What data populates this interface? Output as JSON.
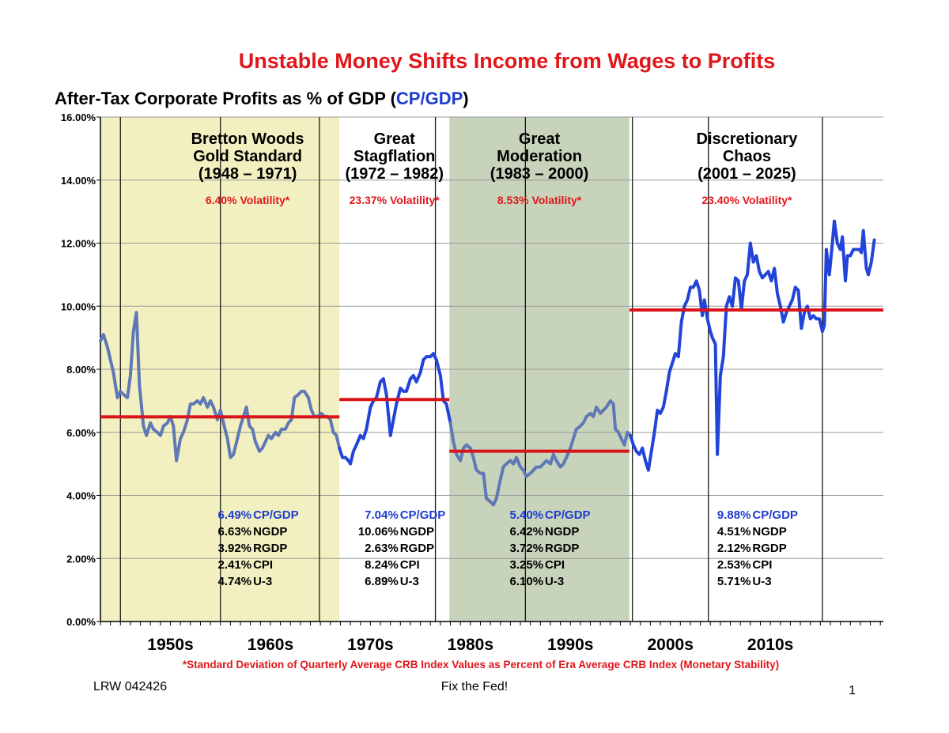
{
  "slide": {
    "title": "Unstable Money Shifts Income from Wages to Profits",
    "footnote": "*Standard Deviation of Quarterly Average CRB Index Values as Percent of Era Average CRB Index (Monetary Stability)",
    "footer_left": "LRW 042426",
    "footer_center": "Fix the Fed!",
    "footer_right": "1"
  },
  "chart_data": {
    "type": "line",
    "title": "After-Tax Corporate Profits as % of GDP (",
    "title_accent": "CP/GDP",
    "title_end": ")",
    "ylim": [
      0,
      16
    ],
    "xlim": [
      1948,
      2026.3
    ],
    "yticks": [
      "0.00%",
      "2.00%",
      "4.00%",
      "6.00%",
      "8.00%",
      "10.00%",
      "12.00%",
      "14.00%",
      "16.00%"
    ],
    "decade_labels": [
      "1950s",
      "1960s",
      "1970s",
      "1980s",
      "1990s",
      "2000s",
      "2010s"
    ],
    "decade_label_years": [
      1955,
      1965,
      1975,
      1985,
      1995,
      2005,
      2015
    ],
    "grid": true,
    "recession_lines": [
      1950,
      1960,
      1969.9,
      1981.5,
      1990.5,
      2001.2,
      2008.8,
      2020.2
    ],
    "colors": {
      "line_stable": "#5f78b6",
      "line_unstable": "#2244d8",
      "average_line": "#d9141b",
      "stat_cp": "#1e3cd0",
      "volatility": "#e0161b",
      "slide_title": "#e0161b"
    },
    "eras": [
      {
        "name_lines": [
          "Bretton Woods",
          "Gold Standard",
          "(1948 – 1971)"
        ],
        "volatility": "6.40% Volatility*",
        "start": 1948,
        "end": 1971.9,
        "shade": "#f2f0c0",
        "average": 6.49,
        "stats": [
          {
            "value": "6.49%",
            "label": "CP/GDP"
          },
          {
            "value": "6.63%",
            "label": "NGDP"
          },
          {
            "value": "3.92%",
            "label": "RGDP"
          },
          {
            "value": "2.41%",
            "label": "CPI"
          },
          {
            "value": "4.74%",
            "label": "U-3"
          }
        ]
      },
      {
        "name_lines": [
          "Great",
          "Stagflation",
          "(1972 – 1982)"
        ],
        "volatility": "23.37% Volatility*",
        "start": 1971.9,
        "end": 1982.9,
        "shade": "#ffffff",
        "average": 7.04,
        "stats": [
          {
            "value": "7.04%",
            "label": "CP/GDP"
          },
          {
            "value": "10.06%",
            "label": "NGDP"
          },
          {
            "value": "2.63%",
            "label": "RGDP"
          },
          {
            "value": "8.24%",
            "label": "CPI"
          },
          {
            "value": "6.89%",
            "label": "U-3"
          }
        ]
      },
      {
        "name_lines": [
          "Great",
          "Moderation",
          "(1983 – 2000)"
        ],
        "volatility": "8.53% Volatility*",
        "start": 1982.9,
        "end": 2000.9,
        "shade": "#c8d3bb",
        "average": 5.4,
        "stats": [
          {
            "value": "5.40%",
            "label": "CP/GDP"
          },
          {
            "value": "6.42%",
            "label": "NGDP"
          },
          {
            "value": "3.72%",
            "label": "RGDP"
          },
          {
            "value": "3.25%",
            "label": "CPI"
          },
          {
            "value": "6.10%",
            "label": "U-3"
          }
        ]
      },
      {
        "name_lines": [
          "Discretionary",
          "Chaos",
          "(2001 – 2025)"
        ],
        "volatility": "23.40% Volatility*",
        "start": 2000.9,
        "end": 2026.3,
        "shade": "#ffffff",
        "average": 9.88,
        "stats": [
          {
            "value": "9.88%",
            "label": "CP/GDP"
          },
          {
            "value": "4.51%",
            "label": "NGDP"
          },
          {
            "value": "2.12%",
            "label": "RGDP"
          },
          {
            "value": "2.53%",
            "label": "CPI"
          },
          {
            "value": "5.71%",
            "label": "U-3"
          }
        ]
      }
    ],
    "series": [
      {
        "name": "CP/GDP",
        "points": [
          [
            1948.0,
            8.9
          ],
          [
            1948.3,
            9.1
          ],
          [
            1948.7,
            8.7
          ],
          [
            1949.0,
            8.3
          ],
          [
            1949.3,
            7.9
          ],
          [
            1949.7,
            7.1
          ],
          [
            1950.0,
            7.3
          ],
          [
            1950.3,
            7.2
          ],
          [
            1950.7,
            7.1
          ],
          [
            1951.0,
            7.8
          ],
          [
            1951.3,
            9.2
          ],
          [
            1951.6,
            9.8
          ],
          [
            1951.9,
            7.5
          ],
          [
            1952.3,
            6.2
          ],
          [
            1952.6,
            5.9
          ],
          [
            1953.0,
            6.3
          ],
          [
            1953.3,
            6.1
          ],
          [
            1953.7,
            6.0
          ],
          [
            1954.0,
            5.9
          ],
          [
            1954.3,
            6.2
          ],
          [
            1954.7,
            6.3
          ],
          [
            1955.0,
            6.5
          ],
          [
            1955.3,
            6.2
          ],
          [
            1955.6,
            5.1
          ],
          [
            1956.0,
            5.8
          ],
          [
            1956.3,
            6.0
          ],
          [
            1956.7,
            6.4
          ],
          [
            1957.0,
            6.9
          ],
          [
            1957.3,
            6.9
          ],
          [
            1957.7,
            7.0
          ],
          [
            1958.0,
            6.9
          ],
          [
            1958.3,
            7.1
          ],
          [
            1958.7,
            6.8
          ],
          [
            1959.0,
            7.0
          ],
          [
            1959.3,
            6.8
          ],
          [
            1959.7,
            6.4
          ],
          [
            1960.0,
            6.7
          ],
          [
            1960.3,
            6.3
          ],
          [
            1960.7,
            5.8
          ],
          [
            1961.0,
            5.2
          ],
          [
            1961.3,
            5.3
          ],
          [
            1961.7,
            5.8
          ],
          [
            1962.0,
            6.2
          ],
          [
            1962.3,
            6.5
          ],
          [
            1962.6,
            6.8
          ],
          [
            1962.9,
            6.2
          ],
          [
            1963.2,
            6.1
          ],
          [
            1963.5,
            5.7
          ],
          [
            1963.9,
            5.4
          ],
          [
            1964.2,
            5.5
          ],
          [
            1964.5,
            5.7
          ],
          [
            1964.8,
            5.9
          ],
          [
            1965.1,
            5.8
          ],
          [
            1965.5,
            6.0
          ],
          [
            1965.8,
            5.9
          ],
          [
            1966.1,
            6.1
          ],
          [
            1966.5,
            6.1
          ],
          [
            1966.8,
            6.3
          ],
          [
            1967.1,
            6.4
          ],
          [
            1967.4,
            7.1
          ],
          [
            1967.8,
            7.2
          ],
          [
            1968.1,
            7.3
          ],
          [
            1968.4,
            7.3
          ],
          [
            1968.8,
            7.1
          ],
          [
            1969.1,
            6.7
          ],
          [
            1969.4,
            6.5
          ],
          [
            1969.7,
            6.5
          ],
          [
            1970.1,
            6.6
          ],
          [
            1970.4,
            6.5
          ],
          [
            1970.7,
            6.5
          ],
          [
            1971.0,
            6.4
          ],
          [
            1971.3,
            6.0
          ],
          [
            1971.6,
            5.9
          ],
          [
            1971.9,
            5.5
          ],
          [
            1972.2,
            5.2
          ],
          [
            1972.5,
            5.2
          ],
          [
            1972.8,
            5.1
          ],
          [
            1973.0,
            5.0
          ],
          [
            1973.3,
            5.4
          ],
          [
            1973.6,
            5.6
          ],
          [
            1974.0,
            5.9
          ],
          [
            1974.3,
            5.8
          ],
          [
            1974.6,
            6.1
          ],
          [
            1975.0,
            6.8
          ],
          [
            1975.3,
            7.0
          ],
          [
            1975.6,
            7.1
          ],
          [
            1976.0,
            7.6
          ],
          [
            1976.3,
            7.7
          ],
          [
            1976.6,
            7.2
          ],
          [
            1977.0,
            5.9
          ],
          [
            1977.3,
            6.4
          ],
          [
            1977.6,
            6.9
          ],
          [
            1978.0,
            7.4
          ],
          [
            1978.3,
            7.3
          ],
          [
            1978.6,
            7.3
          ],
          [
            1979.0,
            7.7
          ],
          [
            1979.3,
            7.8
          ],
          [
            1979.6,
            7.6
          ],
          [
            1980.0,
            7.9
          ],
          [
            1980.3,
            8.3
          ],
          [
            1980.6,
            8.4
          ],
          [
            1981.0,
            8.4
          ],
          [
            1981.3,
            8.5
          ],
          [
            1981.6,
            8.3
          ],
          [
            1982.0,
            7.8
          ],
          [
            1982.3,
            7.0
          ],
          [
            1982.6,
            6.9
          ],
          [
            1983.0,
            6.3
          ],
          [
            1983.3,
            5.7
          ],
          [
            1983.6,
            5.3
          ],
          [
            1984.0,
            5.1
          ],
          [
            1984.3,
            5.5
          ],
          [
            1984.6,
            5.6
          ],
          [
            1985.0,
            5.5
          ],
          [
            1985.3,
            5.2
          ],
          [
            1985.6,
            4.8
          ],
          [
            1986.0,
            4.7
          ],
          [
            1986.3,
            4.7
          ],
          [
            1986.6,
            3.9
          ],
          [
            1987.0,
            3.8
          ],
          [
            1987.3,
            3.7
          ],
          [
            1987.6,
            3.9
          ],
          [
            1988.0,
            4.5
          ],
          [
            1988.3,
            4.9
          ],
          [
            1988.6,
            5.0
          ],
          [
            1989.0,
            5.1
          ],
          [
            1989.3,
            5.0
          ],
          [
            1989.6,
            5.2
          ],
          [
            1990.0,
            4.9
          ],
          [
            1990.3,
            4.8
          ],
          [
            1990.6,
            4.6
          ],
          [
            1991.0,
            4.7
          ],
          [
            1991.3,
            4.8
          ],
          [
            1991.6,
            4.9
          ],
          [
            1992.0,
            4.9
          ],
          [
            1992.3,
            5.0
          ],
          [
            1992.6,
            5.1
          ],
          [
            1993.0,
            5.0
          ],
          [
            1993.3,
            5.3
          ],
          [
            1993.6,
            5.1
          ],
          [
            1994.0,
            4.9
          ],
          [
            1994.3,
            5.0
          ],
          [
            1994.6,
            5.2
          ],
          [
            1995.0,
            5.5
          ],
          [
            1995.3,
            5.8
          ],
          [
            1995.6,
            6.1
          ],
          [
            1996.0,
            6.2
          ],
          [
            1996.3,
            6.3
          ],
          [
            1996.6,
            6.5
          ],
          [
            1997.0,
            6.6
          ],
          [
            1997.3,
            6.5
          ],
          [
            1997.6,
            6.8
          ],
          [
            1998.0,
            6.6
          ],
          [
            1998.3,
            6.7
          ],
          [
            1998.6,
            6.8
          ],
          [
            1999.0,
            7.0
          ],
          [
            1999.3,
            6.9
          ],
          [
            1999.5,
            6.1
          ],
          [
            1999.8,
            6.0
          ],
          [
            2000.1,
            5.8
          ],
          [
            2000.4,
            5.6
          ],
          [
            2000.7,
            6.0
          ],
          [
            2001.0,
            5.9
          ],
          [
            2001.3,
            5.6
          ],
          [
            2001.6,
            5.4
          ],
          [
            2001.9,
            5.3
          ],
          [
            2002.2,
            5.5
          ],
          [
            2002.5,
            5.1
          ],
          [
            2002.8,
            4.8
          ],
          [
            2003.1,
            5.4
          ],
          [
            2003.4,
            6.0
          ],
          [
            2003.7,
            6.7
          ],
          [
            2004.0,
            6.6
          ],
          [
            2004.3,
            6.8
          ],
          [
            2004.6,
            7.3
          ],
          [
            2004.9,
            7.9
          ],
          [
            2005.2,
            8.2
          ],
          [
            2005.5,
            8.5
          ],
          [
            2005.8,
            8.4
          ],
          [
            2006.1,
            9.5
          ],
          [
            2006.4,
            10.0
          ],
          [
            2006.7,
            10.2
          ],
          [
            2007.0,
            10.6
          ],
          [
            2007.3,
            10.6
          ],
          [
            2007.6,
            10.8
          ],
          [
            2007.9,
            10.5
          ],
          [
            2008.2,
            9.7
          ],
          [
            2008.4,
            10.2
          ],
          [
            2008.7,
            9.6
          ],
          [
            2009.0,
            9.2
          ],
          [
            2009.2,
            9.0
          ],
          [
            2009.5,
            8.8
          ],
          [
            2009.7,
            5.3
          ],
          [
            2010.0,
            7.8
          ],
          [
            2010.3,
            8.4
          ],
          [
            2010.6,
            10.0
          ],
          [
            2010.9,
            10.3
          ],
          [
            2011.2,
            10.0
          ],
          [
            2011.5,
            10.9
          ],
          [
            2011.8,
            10.8
          ],
          [
            2012.1,
            9.9
          ],
          [
            2012.4,
            10.8
          ],
          [
            2012.7,
            11.0
          ],
          [
            2013.0,
            12.0
          ],
          [
            2013.3,
            11.4
          ],
          [
            2013.6,
            11.6
          ],
          [
            2013.9,
            11.1
          ],
          [
            2014.2,
            10.9
          ],
          [
            2014.5,
            11.0
          ],
          [
            2014.8,
            11.1
          ],
          [
            2015.1,
            10.8
          ],
          [
            2015.4,
            11.2
          ],
          [
            2015.7,
            10.4
          ],
          [
            2016.0,
            10.0
          ],
          [
            2016.3,
            9.5
          ],
          [
            2016.6,
            9.8
          ],
          [
            2016.9,
            10.0
          ],
          [
            2017.2,
            10.2
          ],
          [
            2017.5,
            10.6
          ],
          [
            2017.8,
            10.5
          ],
          [
            2018.1,
            9.3
          ],
          [
            2018.4,
            9.8
          ],
          [
            2018.7,
            10.0
          ],
          [
            2019.0,
            9.6
          ],
          [
            2019.3,
            9.7
          ],
          [
            2019.6,
            9.6
          ],
          [
            2019.9,
            9.6
          ],
          [
            2020.2,
            9.2
          ],
          [
            2020.4,
            9.4
          ],
          [
            2020.6,
            11.8
          ],
          [
            2020.9,
            11.0
          ],
          [
            2021.2,
            12.0
          ],
          [
            2021.4,
            12.7
          ],
          [
            2021.7,
            12.0
          ],
          [
            2022.0,
            11.8
          ],
          [
            2022.2,
            12.2
          ],
          [
            2022.5,
            10.8
          ],
          [
            2022.7,
            11.6
          ],
          [
            2023.0,
            11.6
          ],
          [
            2023.3,
            11.8
          ],
          [
            2023.6,
            11.8
          ],
          [
            2023.9,
            11.8
          ],
          [
            2024.1,
            11.7
          ],
          [
            2024.3,
            12.4
          ],
          [
            2024.6,
            11.2
          ],
          [
            2024.8,
            11.0
          ],
          [
            2025.1,
            11.4
          ],
          [
            2025.4,
            12.1
          ]
        ]
      }
    ]
  }
}
